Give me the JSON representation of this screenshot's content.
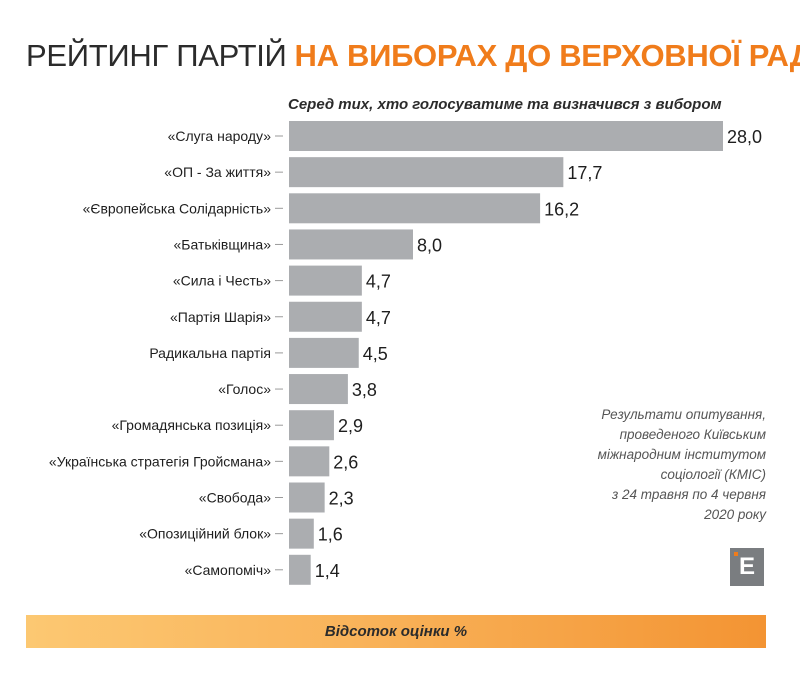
{
  "header": {
    "title_part1": "РЕЙТИНГ ПАРТІЙ",
    "title_part2": "НА ВИБОРАХ ДО ВЕРХОВНОЇ РАДИ",
    "subtitle": "Серед тих, хто голосуватиме та визначився з вибором"
  },
  "chart_data": {
    "type": "bar",
    "orientation": "horizontal",
    "title": "РЕЙТИНГ ПАРТІЙ НА ВИБОРАХ ДО ВЕРХОВНОЇ РАДИ",
    "subtitle": "Серед тих, хто голосуватиме та визначився з вибором",
    "xlabel": "Відсоток оцінки %",
    "ylabel": "",
    "xlim": [
      0,
      28
    ],
    "categories": [
      "«Слуга народу»",
      "«ОП - За життя»",
      "«Європейська Солідарність»",
      "«Батьківщина»",
      "«Сила і Честь»",
      "«Партія Шарія»",
      "Радикальна партія",
      "«Голос»",
      "«Громадянська позиція»",
      "«Українська стратегія Гройсмана»",
      "«Свобода»",
      "«Опозиційний блок»",
      "«Самопоміч»"
    ],
    "values": [
      28.0,
      17.7,
      16.2,
      8.0,
      4.7,
      4.7,
      4.5,
      3.8,
      2.9,
      2.6,
      2.3,
      1.6,
      1.4
    ],
    "value_labels": [
      "28,0",
      "17,7",
      "16,2",
      "8,0",
      "4,7",
      "4,7",
      "4,5",
      "3,8",
      "2,9",
      "2,6",
      "2,3",
      "1,6",
      "1,4"
    ],
    "bar_color": "#abadb0",
    "grid": false,
    "legend": "none"
  },
  "note": {
    "lines": [
      "Результати опитування,",
      "проведеного Київським",
      "міжнародним інститутом",
      "соціології (КМІС)",
      "з 24 травня по 4 червня",
      "2020 року"
    ]
  },
  "logo": {
    "letter": "Е"
  },
  "footer": {
    "label": "Відсоток оцінки %"
  },
  "colors": {
    "accent": "#f07c1b",
    "bar": "#abadb0",
    "text": "#2b2b2b",
    "label": "#1e1e1e"
  }
}
